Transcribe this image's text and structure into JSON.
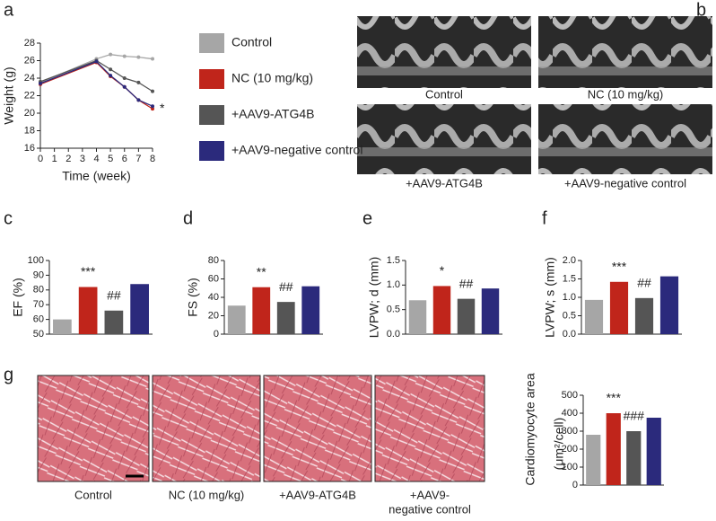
{
  "panels": [
    "a",
    "b",
    "c",
    "d",
    "e",
    "f",
    "g"
  ],
  "echo_captions": [
    "Control",
    "NC (10 mg/kg)",
    "+AAV9-ATG4B",
    "+AAV9-negative control"
  ],
  "histology_captions": [
    [
      "Control"
    ],
    [
      "NC (10 mg/kg)"
    ],
    [
      "+AAV9-ATG4B"
    ],
    [
      "+AAV9-",
      "negative control"
    ]
  ],
  "chart_data": [
    {
      "type": "line",
      "xlabel": "Time (week)",
      "ylabel": "Weight (g)",
      "x": [
        0,
        4,
        5,
        6,
        7,
        8
      ],
      "xlim": [
        0,
        8
      ],
      "xticks": [
        0,
        1,
        2,
        3,
        4,
        5,
        6,
        7,
        8
      ],
      "ylim": [
        16,
        28
      ],
      "yticks": [
        16,
        18,
        20,
        22,
        24,
        26,
        28
      ],
      "annotation": "*",
      "series": [
        {
          "name": "Control",
          "color": "#a6a6a6",
          "values": [
            23.5,
            26.2,
            26.7,
            26.5,
            26.4,
            26.2
          ]
        },
        {
          "name": "NC (10 mg/kg)",
          "color": "#c0251b",
          "values": [
            23.3,
            25.8,
            24.2,
            23.0,
            21.5,
            20.5
          ]
        },
        {
          "name": "+AAV9-ATG4B",
          "color": "#555555",
          "values": [
            23.6,
            26.0,
            25.0,
            24.0,
            23.5,
            22.5
          ]
        },
        {
          "name": "+AAV9-negative control",
          "color": "#2b2a7c",
          "values": [
            23.4,
            25.9,
            24.3,
            23.0,
            21.5,
            20.8
          ]
        }
      ]
    },
    {
      "type": "bar",
      "ylabel": "EF (%)",
      "categories": [
        null,
        null,
        null,
        null
      ],
      "values": [
        60,
        82,
        66,
        84
      ],
      "colors": [
        "#a6a6a6",
        "#c0251b",
        "#555555",
        "#2b2a7c"
      ],
      "bar_annotations": [
        null,
        "***",
        "##",
        null
      ],
      "ylim": [
        50,
        100
      ],
      "yticks": [
        50,
        60,
        70,
        80,
        90,
        100
      ]
    },
    {
      "type": "bar",
      "ylabel": "FS (%)",
      "categories": [
        null,
        null,
        null,
        null
      ],
      "values": [
        31,
        51,
        35,
        52
      ],
      "colors": [
        "#a6a6a6",
        "#c0251b",
        "#555555",
        "#2b2a7c"
      ],
      "bar_annotations": [
        null,
        "**",
        "##",
        null
      ],
      "ylim": [
        0,
        80
      ],
      "yticks": [
        0,
        20,
        40,
        60,
        80
      ]
    },
    {
      "type": "bar",
      "ylabel": "LVPW; d (mm)",
      "categories": [
        null,
        null,
        null,
        null
      ],
      "values": [
        0.69,
        0.98,
        0.72,
        0.93
      ],
      "colors": [
        "#a6a6a6",
        "#c0251b",
        "#555555",
        "#2b2a7c"
      ],
      "bar_annotations": [
        null,
        "*",
        "##",
        null
      ],
      "ylim": [
        0,
        1.5
      ],
      "yticks": [
        {
          "value": 0,
          "label": "0.0"
        },
        0.5,
        {
          "value": 1,
          "label": "1.0"
        },
        1.5
      ]
    },
    {
      "type": "bar",
      "ylabel": "LVPW; s (mm)",
      "categories": [
        null,
        null,
        null,
        null
      ],
      "values": [
        0.93,
        1.42,
        0.98,
        1.57
      ],
      "colors": [
        "#a6a6a6",
        "#c0251b",
        "#555555",
        "#2b2a7c"
      ],
      "bar_annotations": [
        null,
        "***",
        "##",
        null
      ],
      "ylim": [
        0,
        2
      ],
      "yticks": [
        {
          "value": 0,
          "label": "0.0"
        },
        0.5,
        {
          "value": 1,
          "label": "1.0"
        },
        1.5,
        {
          "value": 2,
          "label": "2.0"
        }
      ]
    },
    {
      "type": "bar",
      "ylabel": [
        "Cardiomyocyte area",
        "(μm²/cell)"
      ],
      "categories": [
        null,
        null,
        null,
        null
      ],
      "values": [
        280,
        400,
        300,
        375
      ],
      "colors": [
        "#a6a6a6",
        "#c0251b",
        "#555555",
        "#2b2a7c"
      ],
      "bar_annotations": [
        null,
        "***",
        "###",
        null
      ],
      "ylim": [
        0,
        500
      ],
      "yticks": [
        0,
        100,
        200,
        300,
        400,
        500
      ]
    }
  ]
}
